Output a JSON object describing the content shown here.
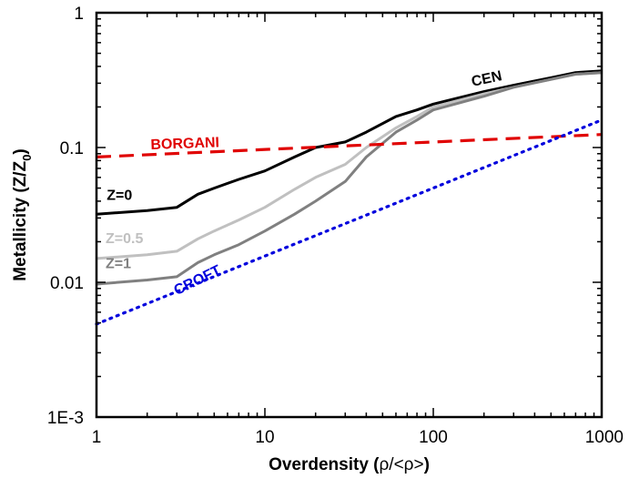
{
  "chart_data": {
    "type": "line",
    "x_scale": "log",
    "y_scale": "log",
    "xlim": [
      1,
      1000
    ],
    "ylim": [
      0.001,
      1
    ],
    "x_ticks": [
      {
        "value": 1,
        "label": "1"
      },
      {
        "value": 10,
        "label": "10"
      },
      {
        "value": 100,
        "label": "100"
      },
      {
        "value": 1000,
        "label": "1000"
      }
    ],
    "y_ticks": [
      {
        "value": 0.001,
        "label": "1E-3"
      },
      {
        "value": 0.01,
        "label": "0.01"
      },
      {
        "value": 0.1,
        "label": "0.1"
      },
      {
        "value": 1,
        "label": "1"
      }
    ],
    "xlabel_text": "Overdensity (",
    "xlabel_symbol": "ρ/<ρ>",
    "xlabel_close": ")",
    "ylabel_text": "Metallicity (Z/Z",
    "ylabel_sub": "0",
    "ylabel_close": ")",
    "grid": false,
    "series": [
      {
        "name": "Z=0",
        "color": "#000000",
        "style": "solid",
        "x": [
          1,
          2,
          3,
          4,
          5,
          7,
          10,
          15,
          20,
          30,
          40,
          60,
          80,
          100,
          200,
          300,
          500,
          700,
          1000
        ],
        "y": [
          0.032,
          0.034,
          0.036,
          0.045,
          0.05,
          0.058,
          0.067,
          0.085,
          0.1,
          0.11,
          0.13,
          0.17,
          0.19,
          0.21,
          0.26,
          0.29,
          0.33,
          0.36,
          0.37
        ]
      },
      {
        "name": "Z=0.5",
        "color": "#c0c0c0",
        "style": "solid",
        "x": [
          1,
          2,
          3,
          4,
          5,
          7,
          10,
          15,
          20,
          30,
          40,
          60,
          80,
          100,
          200,
          300,
          500,
          700,
          1000
        ],
        "y": [
          0.015,
          0.016,
          0.017,
          0.021,
          0.024,
          0.029,
          0.036,
          0.049,
          0.06,
          0.075,
          0.1,
          0.14,
          0.17,
          0.2,
          0.25,
          0.28,
          0.32,
          0.35,
          0.36
        ]
      },
      {
        "name": "Z=1",
        "color": "#808080",
        "style": "solid",
        "x": [
          1,
          2,
          3,
          4,
          5,
          7,
          10,
          15,
          20,
          30,
          40,
          60,
          80,
          100,
          200,
          300,
          500,
          700,
          1000
        ],
        "y": [
          0.0097,
          0.0104,
          0.011,
          0.014,
          0.016,
          0.019,
          0.024,
          0.032,
          0.04,
          0.056,
          0.085,
          0.13,
          0.16,
          0.19,
          0.24,
          0.28,
          0.32,
          0.35,
          0.36
        ]
      },
      {
        "name": "BORGANI",
        "color": "#e00000",
        "style": "dashed",
        "x": [
          1,
          1000
        ],
        "y": [
          0.085,
          0.125
        ]
      },
      {
        "name": "CROFT",
        "color": "#0000dd",
        "style": "dotted",
        "x": [
          1,
          1000
        ],
        "y": [
          0.0049,
          0.16
        ]
      }
    ],
    "annotations": [
      {
        "text": "CEN",
        "color": "#000000"
      },
      {
        "text": "BORGANI",
        "color": "#e00000"
      },
      {
        "text": "Z=0",
        "color": "#000000"
      },
      {
        "text": "Z=0.5",
        "color": "#c0c0c0"
      },
      {
        "text": "Z=1",
        "color": "#808080"
      },
      {
        "text": "CROFT",
        "color": "#0000dd"
      }
    ]
  }
}
